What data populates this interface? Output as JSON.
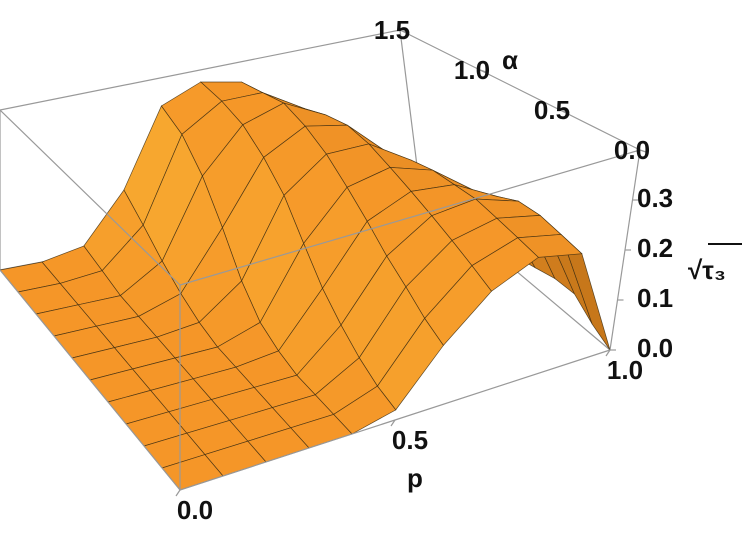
{
  "chart_data": {
    "type": "surface",
    "xlabel": "p",
    "ylabel": "α",
    "zlabel": "√τ₃",
    "x": [
      0,
      0.1,
      0.2,
      0.3,
      0.4,
      0.5,
      0.6,
      0.7,
      0.8,
      0.9,
      1.0
    ],
    "y": [
      0,
      0.15,
      0.3,
      0.45,
      0.6,
      0.75,
      0.9,
      1.05,
      1.2,
      1.35,
      1.5
    ],
    "z": [
      [
        0,
        0,
        0,
        0,
        0,
        0.02,
        0.12,
        0.2,
        0.24,
        0.22,
        0
      ],
      [
        0,
        0,
        0,
        0,
        0,
        0.03,
        0.14,
        0.22,
        0.25,
        0.23,
        0.02
      ],
      [
        0,
        0,
        0,
        0,
        0,
        0.05,
        0.17,
        0.24,
        0.26,
        0.24,
        0.05
      ],
      [
        0,
        0,
        0,
        0,
        0,
        0.08,
        0.2,
        0.26,
        0.27,
        0.24,
        0.05
      ],
      [
        0,
        0,
        0,
        0,
        0.01,
        0.12,
        0.24,
        0.28,
        0.27,
        0.22,
        0.04
      ],
      [
        0,
        0,
        0,
        0,
        0.03,
        0.18,
        0.28,
        0.3,
        0.27,
        0.2,
        0.03
      ],
      [
        0,
        0,
        0,
        0.01,
        0.08,
        0.25,
        0.32,
        0.32,
        0.26,
        0.16,
        0.02
      ],
      [
        0,
        0,
        0,
        0.03,
        0.16,
        0.3,
        0.35,
        0.33,
        0.24,
        0.12,
        0.01
      ],
      [
        0,
        0,
        0,
        0.06,
        0.24,
        0.34,
        0.37,
        0.32,
        0.2,
        0.08,
        0
      ],
      [
        0,
        0,
        0.01,
        0.1,
        0.3,
        0.36,
        0.36,
        0.3,
        0.16,
        0.05,
        0
      ],
      [
        0,
        0,
        0.02,
        0.14,
        0.33,
        0.37,
        0.35,
        0.27,
        0.12,
        0.03,
        0
      ]
    ],
    "color": "#f49a28",
    "xlim": [
      0,
      1
    ],
    "ylim": [
      0,
      1.5
    ],
    "zlim": [
      0,
      0.4
    ],
    "xticks": [
      {
        "value": 0,
        "label": "0.0"
      },
      {
        "value": 0.5,
        "label": "0.5"
      },
      {
        "value": 1,
        "label": "1.0"
      }
    ],
    "yticks": [
      {
        "value": 0,
        "label": "0.0"
      },
      {
        "value": 0.5,
        "label": "0.5"
      },
      {
        "value": 1,
        "label": "1.0"
      },
      {
        "value": 1.5,
        "label": "1.5"
      }
    ],
    "zticks": [
      {
        "value": 0,
        "label": "0.0"
      },
      {
        "value": 0.1,
        "label": "0.1"
      },
      {
        "value": 0.2,
        "label": "0.2"
      },
      {
        "value": 0.3,
        "label": "0.3"
      }
    ]
  }
}
